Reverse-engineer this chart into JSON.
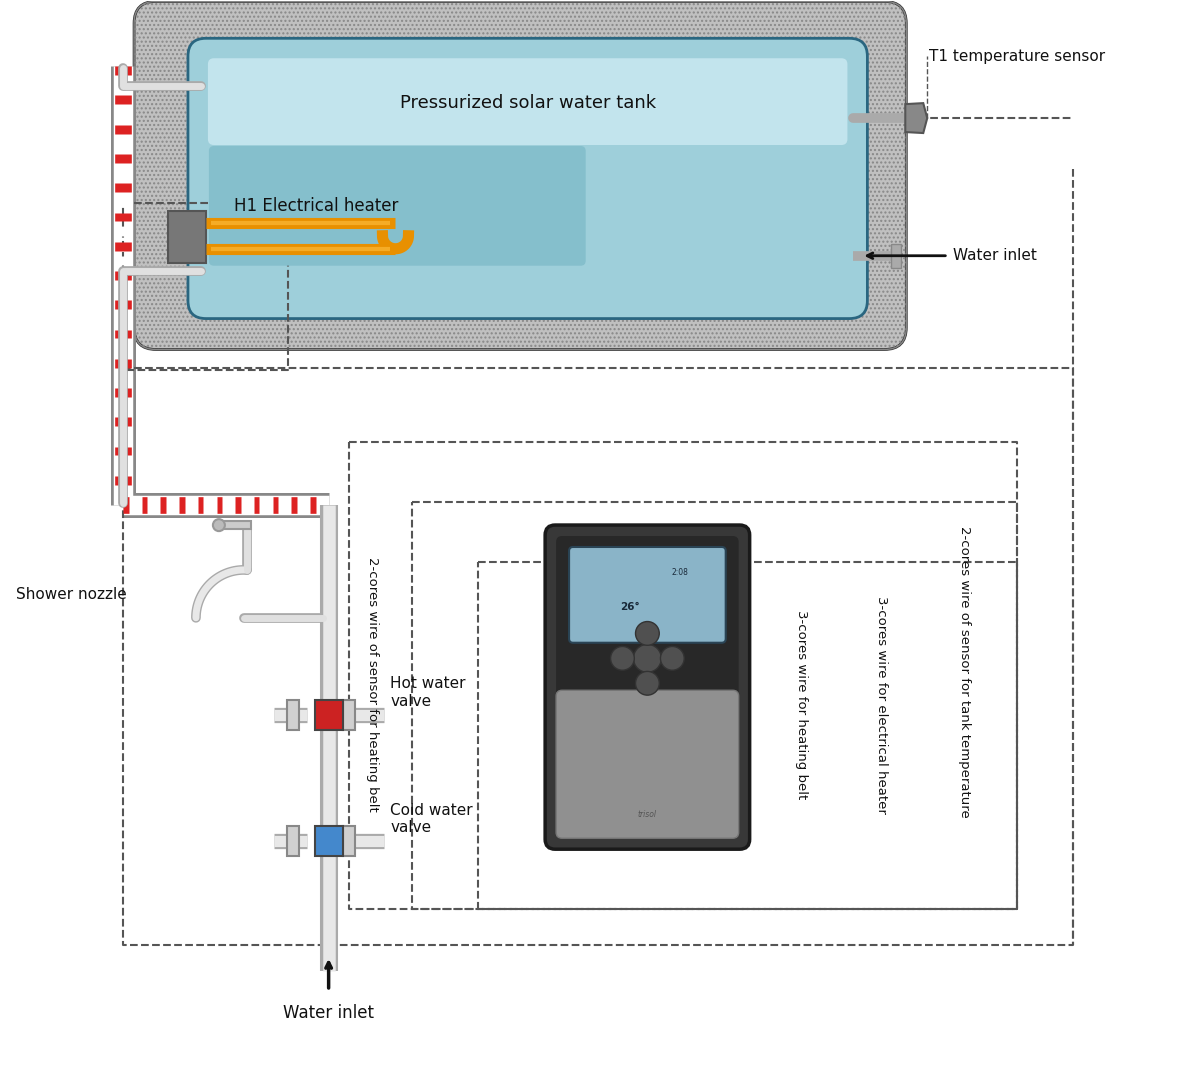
{
  "bg_color": "#ffffff",
  "tank_insulation_color": "#c8c8c8",
  "tank_inner_color": "#9ecfda",
  "tank_inner_light": "#c2e4ed",
  "heater_rect_color": "#85bfcc",
  "heater_color": "#f0a000",
  "valve_hot_color": "#cc2222",
  "valve_cold_color": "#4488cc",
  "label_color": "#111111",
  "dashed_color": "#555555",
  "pipe_color": "#cccccc",
  "pipe_dark": "#999999",
  "red_stripe": "#dd2222",
  "tank_label": "Pressurized solar water tank",
  "heater_label": "H1 Electrical heater",
  "t1_label": "T1 temperature sensor",
  "water_inlet_label": "Water inlet",
  "water_inlet2_label": "Water inlet",
  "shower_label": "Shower nozzle",
  "hot_valve_label": "Hot water\nvalve",
  "cold_valve_label": "Cold water\nvalve",
  "wire1_label": "2-cores wire of sensor for heating belt",
  "wire2_label": "3-cores wire for heating belt",
  "wire3_label": "3-cores wire for electrical heater",
  "wire4_label": "2-cores wire of sensor for tank temperature"
}
